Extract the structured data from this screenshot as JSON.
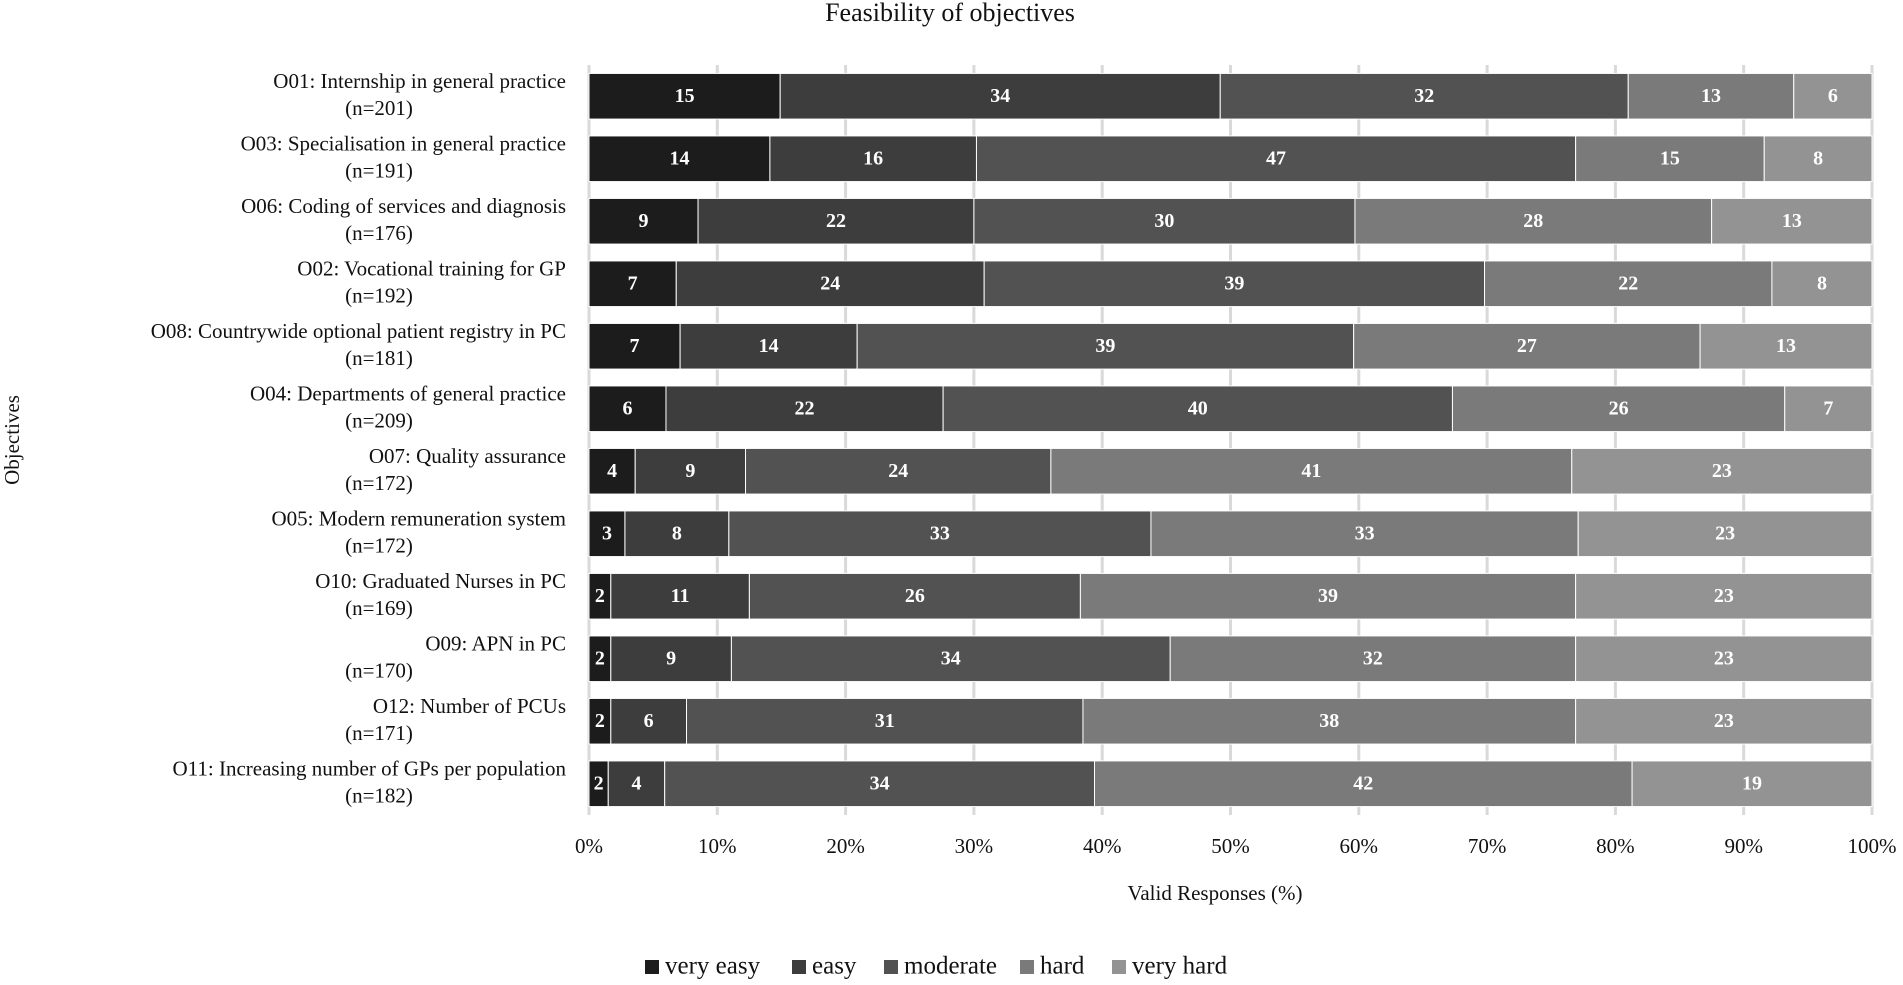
{
  "chart_data": {
    "type": "stacked_barh",
    "title": "Feasibility of objectives",
    "xlabel": "Valid Responses (%)",
    "ylabel": "Objectives",
    "categories": [
      [
        "O01: Internship in general practice",
        "(n=201)"
      ],
      [
        "O03: Specialisation in general practice",
        "(n=191)"
      ],
      [
        "O06: Coding of services and diagnosis",
        "(n=176)"
      ],
      [
        "O02: Vocational training for GP",
        "(n=192)"
      ],
      [
        "O08: Countrywide optional patient registry in PC",
        "(n=181)"
      ],
      [
        "O04: Departments of general practice",
        "(n=209)"
      ],
      [
        "O07: Quality assurance",
        "(n=172)"
      ],
      [
        "O05: Modern remuneration system",
        "(n=172)"
      ],
      [
        "O10: Graduated Nurses in PC",
        "(n=169)"
      ],
      [
        "O09: APN in PC",
        "(n=170)"
      ],
      [
        "O12: Number of PCUs",
        "(n=171)"
      ],
      [
        "O11: Increasing number of GPs per population",
        "(n=182)"
      ]
    ],
    "series": [
      {
        "name": "very easy",
        "color": "#1c1c1c",
        "values": [
          14.9,
          14.1,
          8.5,
          6.8,
          7.1,
          6.0,
          3.6,
          2.8,
          1.7,
          1.7,
          1.7,
          1.5
        ],
        "value_labels": [
          "15",
          "14",
          "9",
          "7",
          "7",
          "6",
          "4",
          "3",
          "2",
          "2",
          "2",
          "2"
        ]
      },
      {
        "name": "easy",
        "color": "#3d3d3d",
        "values": [
          34.3,
          16.1,
          21.5,
          24.0,
          13.8,
          21.6,
          8.6,
          8.1,
          10.8,
          9.4,
          5.9,
          4.4
        ],
        "value_labels": [
          "34",
          "16",
          "22",
          "24",
          "14",
          "22",
          "9",
          "8",
          "11",
          "9",
          "6",
          "4"
        ]
      },
      {
        "name": "moderate",
        "color": "#525252",
        "values": [
          31.8,
          46.7,
          29.7,
          39.0,
          38.7,
          39.7,
          23.8,
          32.9,
          25.8,
          34.2,
          30.9,
          33.5
        ],
        "value_labels": [
          "32",
          "47",
          "30",
          "39",
          "39",
          "40",
          "24",
          "33",
          "26",
          "34",
          "31",
          "34"
        ]
      },
      {
        "name": "hard",
        "color": "#7a7a7a",
        "values": [
          12.9,
          14.7,
          27.8,
          22.4,
          27.0,
          25.9,
          40.6,
          33.3,
          38.6,
          31.6,
          38.4,
          41.9
        ],
        "value_labels": [
          "13",
          "15",
          "28",
          "22",
          "27",
          "26",
          "41",
          "33",
          "39",
          "32",
          "38",
          "42"
        ]
      },
      {
        "name": "very hard",
        "color": "#939393",
        "values": [
          6.1,
          8.4,
          12.5,
          7.8,
          13.4,
          6.8,
          23.4,
          22.9,
          23.1,
          23.1,
          23.1,
          18.7
        ],
        "value_labels": [
          "6",
          "8",
          "13",
          "8",
          "13",
          "7",
          "23",
          "23",
          "23",
          "23",
          "23",
          "19"
        ]
      }
    ],
    "xlim": [
      0,
      100
    ],
    "xticks": [
      {
        "value": 0,
        "label": "0%"
      },
      {
        "value": 10,
        "label": "10%"
      },
      {
        "value": 20,
        "label": "20%"
      },
      {
        "value": 30,
        "label": "30%"
      },
      {
        "value": 40,
        "label": "40%"
      },
      {
        "value": 50,
        "label": "50%"
      },
      {
        "value": 60,
        "label": "60%"
      },
      {
        "value": 70,
        "label": "70%"
      },
      {
        "value": 80,
        "label": "80%"
      },
      {
        "value": 90,
        "label": "90%"
      },
      {
        "value": 100,
        "label": "100%"
      }
    ],
    "grid": true,
    "legend": "bottom"
  }
}
